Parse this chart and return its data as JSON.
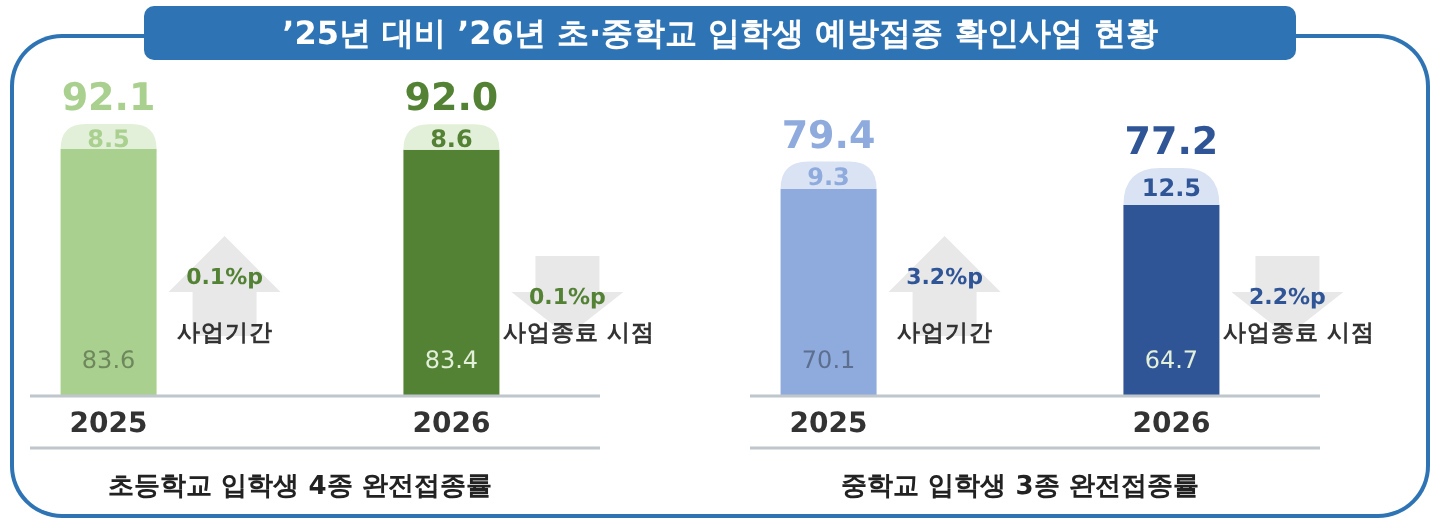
{
  "chart_data": [
    {
      "type": "bar",
      "title": "’25년 대비 ’26년 초·중학교 입학생 예방접종 확인사업 현황",
      "xlabel": "초등학교 입학생 4종 완전접종률",
      "categories": [
        "2025",
        "2026"
      ],
      "stacked": true,
      "data_labels": true,
      "totals": [
        "92.1",
        "92.0"
      ],
      "series": [
        {
          "colors": [
            "#a9d08e",
            "#548235"
          ],
          "values": [
            83.6,
            83.4
          ]
        },
        {
          "colors": [
            "#e2efd9",
            "#e2efd9"
          ],
          "values": [
            8.5,
            8.6
          ]
        }
      ],
      "annotations": [
        "0.1%p",
        "사업기간",
        "0.1%p",
        "사업종료 시점"
      ]
    },
    {
      "type": "bar",
      "xlabel": "중학교 입학생 3종 완전접종률",
      "categories": [
        "2025",
        "2026"
      ],
      "stacked": true,
      "data_labels": true,
      "totals": [
        "79.4",
        "77.2"
      ],
      "series": [
        {
          "colors": [
            "#8faadc",
            "#2f5597"
          ],
          "values": [
            70.1,
            64.7
          ]
        },
        {
          "colors": [
            "#dae3f3",
            "#dae3f3"
          ],
          "values": [
            9.3,
            12.5
          ]
        }
      ],
      "annotations": [
        "3.2%p",
        "사업기간",
        "2.2%p",
        "사업종료 시점"
      ]
    }
  ]
}
